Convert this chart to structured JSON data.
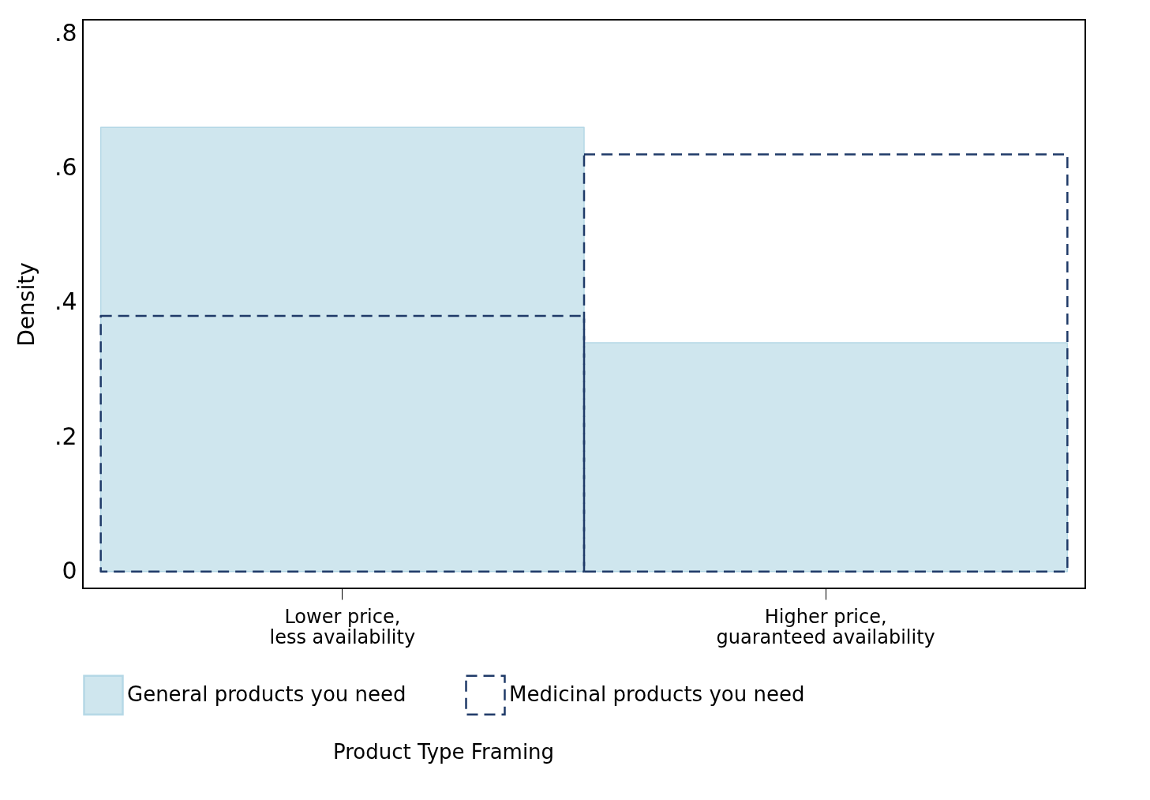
{
  "chart_data": {
    "type": "bar",
    "ylabel": "Density",
    "legend_title": "Product Type Framing",
    "categories": [
      "Lower price,\nless availability",
      "Higher price,\nguaranteed availability"
    ],
    "series": [
      {
        "name": "General products you need",
        "color": "#cfe6ee",
        "values": [
          0.66,
          0.34
        ]
      },
      {
        "name": "Medicinal products you need",
        "color": "#1f3a68",
        "line_style": "dashed",
        "values": [
          0.38,
          0.62
        ]
      }
    ],
    "ylim": [
      -0.025,
      0.82
    ],
    "yticks": [
      {
        "value": 0,
        "label": "0"
      },
      {
        "value": 0.2,
        "label": ".2"
      },
      {
        "value": 0.4,
        "label": ".4"
      },
      {
        "value": 0.6,
        "label": ".6"
      },
      {
        "value": 0.8,
        "label": ".8"
      }
    ],
    "grid": false,
    "legend": "bottom"
  }
}
